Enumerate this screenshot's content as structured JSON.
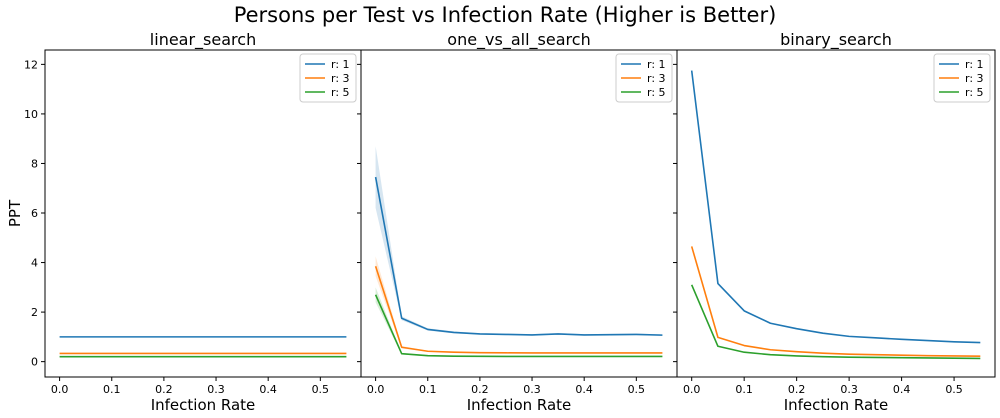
{
  "figure": {
    "suptitle": "Persons per Test vs Infection Rate (Higher is Better)"
  },
  "chart_data": [
    {
      "type": "line",
      "title": "linear_search",
      "xlabel": "Infection Rate",
      "ylabel": "PPT",
      "xlim": [
        -0.028,
        0.578
      ],
      "ylim": [
        -0.62,
        12.58
      ],
      "xticks": [
        "0.0",
        "0.1",
        "0.2",
        "0.3",
        "0.4",
        "0.5"
      ],
      "yticks": [
        "0",
        "2",
        "4",
        "6",
        "8",
        "10",
        "12"
      ],
      "legend_position": "top-right",
      "x": [
        0.0,
        0.05,
        0.1,
        0.15,
        0.2,
        0.25,
        0.3,
        0.35,
        0.4,
        0.45,
        0.5,
        0.55
      ],
      "series": [
        {
          "name": "r: 1",
          "color": "#1f77b4",
          "values": [
            1.0,
            1.0,
            1.0,
            1.0,
            1.0,
            1.0,
            1.0,
            1.0,
            1.0,
            1.0,
            1.0,
            1.0
          ]
        },
        {
          "name": "r: 3",
          "color": "#ff7f0e",
          "values": [
            0.333,
            0.333,
            0.333,
            0.333,
            0.333,
            0.333,
            0.333,
            0.333,
            0.333,
            0.333,
            0.333,
            0.333
          ]
        },
        {
          "name": "r: 5",
          "color": "#2ca02c",
          "values": [
            0.2,
            0.2,
            0.2,
            0.2,
            0.2,
            0.2,
            0.2,
            0.2,
            0.2,
            0.2,
            0.2,
            0.2
          ]
        }
      ]
    },
    {
      "type": "line",
      "title": "one_vs_all_search",
      "xlabel": "Infection Rate",
      "ylabel": "",
      "xlim": [
        -0.028,
        0.578
      ],
      "ylim": [
        -0.62,
        12.58
      ],
      "xticks": [
        "0.0",
        "0.1",
        "0.2",
        "0.3",
        "0.4",
        "0.5"
      ],
      "yticks": [],
      "legend_position": "top-right",
      "x": [
        0.0,
        0.05,
        0.1,
        0.15,
        0.2,
        0.25,
        0.3,
        0.35,
        0.4,
        0.45,
        0.5,
        0.55
      ],
      "series": [
        {
          "name": "r: 1",
          "color": "#1f77b4",
          "values": [
            7.45,
            1.75,
            1.3,
            1.18,
            1.12,
            1.1,
            1.08,
            1.12,
            1.08,
            1.09,
            1.1,
            1.07
          ],
          "band": [
            1.25,
            0.08,
            0.05,
            0.04,
            0.03,
            0.03,
            0.03,
            0.03,
            0.03,
            0.03,
            0.03,
            0.03
          ]
        },
        {
          "name": "r: 3",
          "color": "#ff7f0e",
          "values": [
            3.85,
            0.58,
            0.42,
            0.38,
            0.36,
            0.355,
            0.35,
            0.35,
            0.35,
            0.35,
            0.35,
            0.35
          ],
          "band": [
            0.4,
            0.05,
            0.02,
            0.02,
            0.02,
            0.02,
            0.02,
            0.02,
            0.02,
            0.02,
            0.02,
            0.02
          ]
        },
        {
          "name": "r: 5",
          "color": "#2ca02c",
          "values": [
            2.7,
            0.32,
            0.24,
            0.22,
            0.215,
            0.21,
            0.21,
            0.21,
            0.21,
            0.21,
            0.21,
            0.21
          ],
          "band": [
            0.3,
            0.03,
            0.02,
            0.02,
            0.02,
            0.02,
            0.02,
            0.02,
            0.02,
            0.02,
            0.02,
            0.02
          ]
        }
      ]
    },
    {
      "type": "line",
      "title": "binary_search",
      "xlabel": "Infection Rate",
      "ylabel": "",
      "xlim": [
        -0.028,
        0.578
      ],
      "ylim": [
        -0.62,
        12.58
      ],
      "xticks": [
        "0.0",
        "0.1",
        "0.2",
        "0.3",
        "0.4",
        "0.5"
      ],
      "yticks": [],
      "legend_position": "top-right",
      "x": [
        0.0,
        0.05,
        0.1,
        0.15,
        0.2,
        0.25,
        0.3,
        0.35,
        0.4,
        0.45,
        0.5,
        0.55
      ],
      "series": [
        {
          "name": "r: 1",
          "color": "#1f77b4",
          "values": [
            11.75,
            3.15,
            2.05,
            1.55,
            1.33,
            1.15,
            1.02,
            0.96,
            0.9,
            0.85,
            0.8,
            0.77
          ]
        },
        {
          "name": "r: 3",
          "color": "#ff7f0e",
          "values": [
            4.65,
            0.98,
            0.65,
            0.48,
            0.4,
            0.34,
            0.3,
            0.28,
            0.26,
            0.24,
            0.23,
            0.22
          ]
        },
        {
          "name": "r: 5",
          "color": "#2ca02c",
          "values": [
            3.1,
            0.62,
            0.38,
            0.28,
            0.23,
            0.2,
            0.18,
            0.17,
            0.16,
            0.15,
            0.14,
            0.13
          ]
        }
      ]
    }
  ]
}
